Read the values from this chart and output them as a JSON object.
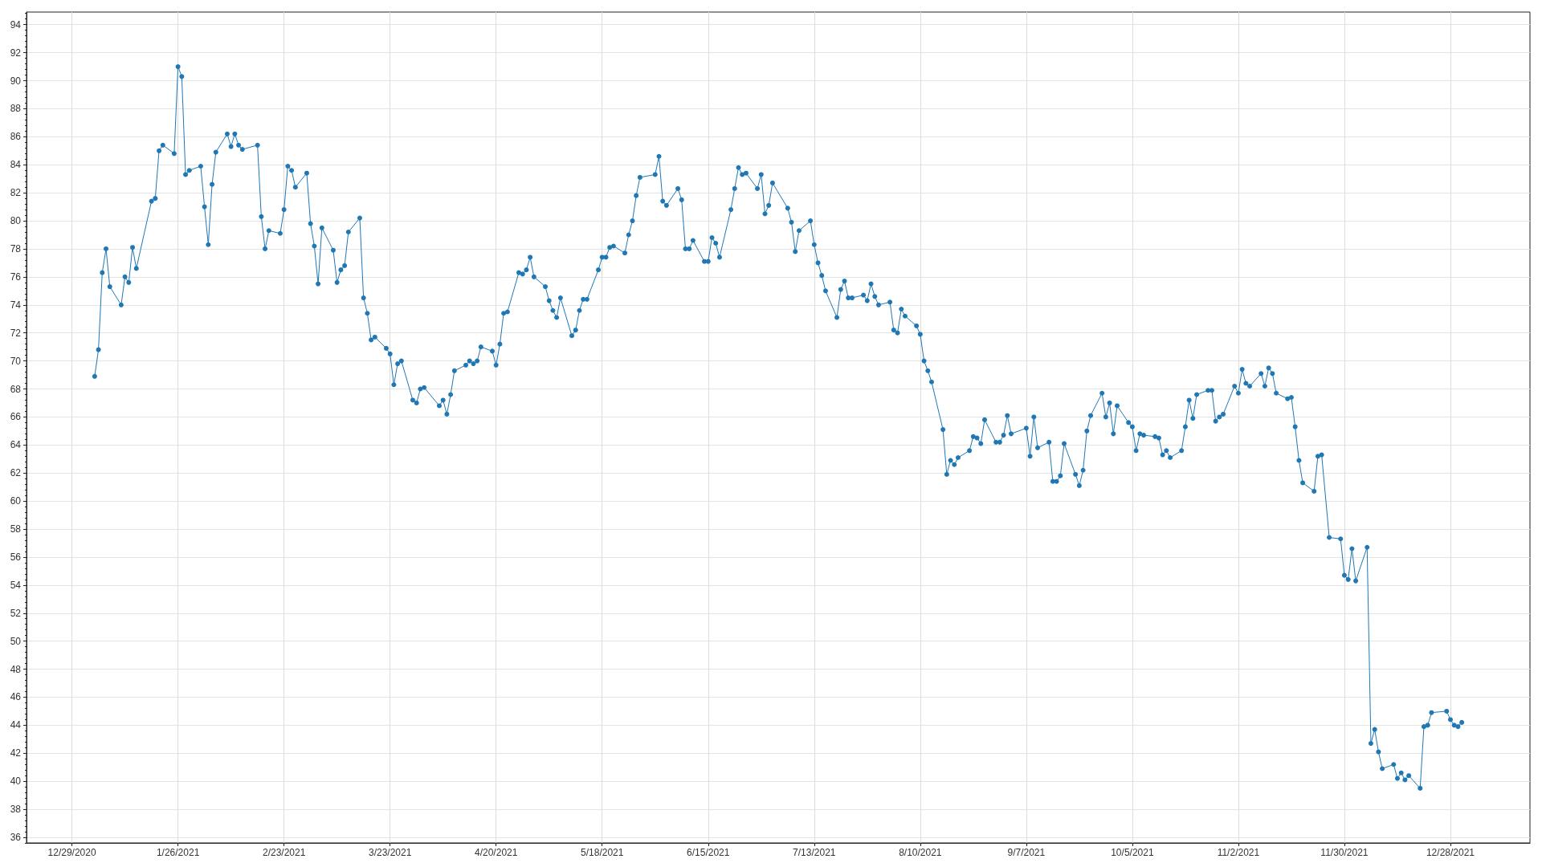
{
  "chart_data": {
    "type": "line",
    "color": "#1f77b4",
    "marker": "circle",
    "line_style": "solid",
    "grid": true,
    "xlim": [
      "2020-12-17",
      "2022-01-18"
    ],
    "xticks": [
      {
        "value": "2020-12-29",
        "label": "12/29/2020"
      },
      {
        "value": "2021-01-26",
        "label": "1/26/2021"
      },
      {
        "value": "2021-02-23",
        "label": "2/23/2021"
      },
      {
        "value": "2021-03-23",
        "label": "3/23/2021"
      },
      {
        "value": "2021-04-20",
        "label": "4/20/2021"
      },
      {
        "value": "2021-05-18",
        "label": "5/18/2021"
      },
      {
        "value": "2021-06-15",
        "label": "6/15/2021"
      },
      {
        "value": "2021-07-13",
        "label": "7/13/2021"
      },
      {
        "value": "2021-08-10",
        "label": "8/10/2021"
      },
      {
        "value": "2021-09-07",
        "label": "9/7/2021"
      },
      {
        "value": "2021-10-05",
        "label": "10/5/2021"
      },
      {
        "value": "2021-11-02",
        "label": "11/2/2021"
      },
      {
        "value": "2021-11-30",
        "label": "11/30/2021"
      },
      {
        "value": "2021-12-28",
        "label": "12/28/2021"
      }
    ],
    "ylim": [
      35.6,
      94.9
    ],
    "yticks": [
      {
        "value": 35.6,
        "label": null
      },
      36,
      {
        "value": 36.4,
        "label": null
      },
      {
        "value": 36.8,
        "label": null
      },
      {
        "value": 37.2,
        "label": null
      },
      {
        "value": 37.6,
        "label": null
      },
      38,
      {
        "value": 38.4,
        "label": null
      },
      {
        "value": 38.8,
        "label": null
      },
      {
        "value": 39.2,
        "label": null
      },
      {
        "value": 39.6,
        "label": null
      },
      40,
      {
        "value": 40.4,
        "label": null
      },
      {
        "value": 40.8,
        "label": null
      },
      {
        "value": 41.2,
        "label": null
      },
      {
        "value": 41.6,
        "label": null
      },
      42,
      {
        "value": 42.4,
        "label": null
      },
      {
        "value": 42.8,
        "label": null
      },
      {
        "value": 43.2,
        "label": null
      },
      {
        "value": 43.6,
        "label": null
      },
      44,
      {
        "value": 44.4,
        "label": null
      },
      {
        "value": 44.8,
        "label": null
      },
      {
        "value": 45.2,
        "label": null
      },
      {
        "value": 45.6,
        "label": null
      },
      46,
      {
        "value": 46.4,
        "label": null
      },
      {
        "value": 46.8,
        "label": null
      },
      {
        "value": 47.2,
        "label": null
      },
      {
        "value": 47.6,
        "label": null
      },
      48,
      {
        "value": 48.4,
        "label": null
      },
      {
        "value": 48.8,
        "label": null
      },
      {
        "value": 49.2,
        "label": null
      },
      {
        "value": 49.6,
        "label": null
      },
      50,
      {
        "value": 50.4,
        "label": null
      },
      {
        "value": 50.8,
        "label": null
      },
      {
        "value": 51.2,
        "label": null
      },
      {
        "value": 51.6,
        "label": null
      },
      52,
      {
        "value": 52.4,
        "label": null
      },
      {
        "value": 52.8,
        "label": null
      },
      {
        "value": 53.2,
        "label": null
      },
      {
        "value": 53.6,
        "label": null
      },
      54,
      {
        "value": 54.4,
        "label": null
      },
      {
        "value": 54.8,
        "label": null
      },
      {
        "value": 55.2,
        "label": null
      },
      {
        "value": 55.6,
        "label": null
      },
      56,
      {
        "value": 56.4,
        "label": null
      },
      {
        "value": 56.8,
        "label": null
      },
      {
        "value": 57.2,
        "label": null
      },
      {
        "value": 57.6,
        "label": null
      },
      58,
      {
        "value": 58.4,
        "label": null
      },
      {
        "value": 58.8,
        "label": null
      },
      {
        "value": 59.2,
        "label": null
      },
      {
        "value": 59.6,
        "label": null
      },
      60,
      {
        "value": 60.4,
        "label": null
      },
      {
        "value": 60.8,
        "label": null
      },
      {
        "value": 61.2,
        "label": null
      },
      {
        "value": 61.6,
        "label": null
      },
      62,
      {
        "value": 62.4,
        "label": null
      },
      {
        "value": 62.8,
        "label": null
      },
      {
        "value": 63.2,
        "label": null
      },
      {
        "value": 63.6,
        "label": null
      },
      64,
      {
        "value": 64.4,
        "label": null
      },
      {
        "value": 64.8,
        "label": null
      },
      {
        "value": 65.2,
        "label": null
      },
      {
        "value": 65.6,
        "label": null
      },
      66,
      {
        "value": 66.4,
        "label": null
      },
      {
        "value": 66.8,
        "label": null
      },
      {
        "value": 67.2,
        "label": null
      },
      {
        "value": 67.6,
        "label": null
      },
      68,
      {
        "value": 68.4,
        "label": null
      },
      {
        "value": 68.8,
        "label": null
      },
      {
        "value": 69.2,
        "label": null
      },
      {
        "value": 69.6,
        "label": null
      },
      70,
      {
        "value": 70.4,
        "label": null
      },
      {
        "value": 70.8,
        "label": null
      },
      {
        "value": 71.2,
        "label": null
      },
      {
        "value": 71.6,
        "label": null
      },
      72,
      {
        "value": 72.4,
        "label": null
      },
      {
        "value": 72.8,
        "label": null
      },
      {
        "value": 73.2,
        "label": null
      },
      {
        "value": 73.6,
        "label": null
      },
      74,
      {
        "value": 74.4,
        "label": null
      },
      {
        "value": 74.8,
        "label": null
      },
      {
        "value": 75.2,
        "label": null
      },
      {
        "value": 75.6,
        "label": null
      },
      76,
      {
        "value": 76.4,
        "label": null
      },
      {
        "value": 76.8,
        "label": null
      },
      {
        "value": 77.2,
        "label": null
      },
      {
        "value": 77.6,
        "label": null
      },
      78,
      {
        "value": 78.4,
        "label": null
      },
      {
        "value": 78.8,
        "label": null
      },
      {
        "value": 79.2,
        "label": null
      },
      {
        "value": 79.6,
        "label": null
      },
      80,
      {
        "value": 80.4,
        "label": null
      },
      {
        "value": 80.8,
        "label": null
      },
      {
        "value": 81.2,
        "label": null
      },
      {
        "value": 81.6,
        "label": null
      },
      82,
      {
        "value": 82.4,
        "label": null
      },
      {
        "value": 82.8,
        "label": null
      },
      {
        "value": 83.2,
        "label": null
      },
      {
        "value": 83.6,
        "label": null
      },
      84,
      {
        "value": 84.4,
        "label": null
      },
      {
        "value": 84.8,
        "label": null
      },
      {
        "value": 85.2,
        "label": null
      },
      {
        "value": 85.6,
        "label": null
      },
      86,
      {
        "value": 86.4,
        "label": null
      },
      {
        "value": 86.8,
        "label": null
      },
      {
        "value": 87.2,
        "label": null
      },
      {
        "value": 87.6,
        "label": null
      },
      88,
      {
        "value": 88.4,
        "label": null
      },
      {
        "value": 88.8,
        "label": null
      },
      {
        "value": 89.2,
        "label": null
      },
      {
        "value": 89.6,
        "label": null
      },
      90,
      {
        "value": 90.4,
        "label": null
      },
      {
        "value": 90.8,
        "label": null
      },
      {
        "value": 91.2,
        "label": null
      },
      {
        "value": 91.6,
        "label": null
      },
      92,
      {
        "value": 92.4,
        "label": null
      },
      {
        "value": 92.8,
        "label": null
      },
      {
        "value": 93.2,
        "label": null
      },
      {
        "value": 93.6,
        "label": null
      },
      94,
      {
        "value": 94.4,
        "label": null
      },
      {
        "value": 94.8,
        "label": null
      }
    ],
    "x": [
      "2021-01-04",
      "2021-01-05",
      "2021-01-06",
      "2021-01-07",
      "2021-01-08",
      "2021-01-11",
      "2021-01-12",
      "2021-01-13",
      "2021-01-14",
      "2021-01-15",
      "2021-01-19",
      "2021-01-20",
      "2021-01-21",
      "2021-01-22",
      "2021-01-25",
      "2021-01-26",
      "2021-01-27",
      "2021-01-28",
      "2021-01-29",
      "2021-02-01",
      "2021-02-02",
      "2021-02-03",
      "2021-02-04",
      "2021-02-05",
      "2021-02-08",
      "2021-02-09",
      "2021-02-10",
      "2021-02-11",
      "2021-02-12",
      "2021-02-16",
      "2021-02-17",
      "2021-02-18",
      "2021-02-19",
      "2021-02-22",
      "2021-02-23",
      "2021-02-24",
      "2021-02-25",
      "2021-02-26",
      "2021-03-01",
      "2021-03-02",
      "2021-03-03",
      "2021-03-04",
      "2021-03-05",
      "2021-03-08",
      "2021-03-09",
      "2021-03-10",
      "2021-03-11",
      "2021-03-12",
      "2021-03-15",
      "2021-03-16",
      "2021-03-17",
      "2021-03-18",
      "2021-03-19",
      "2021-03-22",
      "2021-03-23",
      "2021-03-24",
      "2021-03-25",
      "2021-03-26",
      "2021-03-29",
      "2021-03-30",
      "2021-03-31",
      "2021-04-01",
      "2021-04-05",
      "2021-04-06",
      "2021-04-07",
      "2021-04-08",
      "2021-04-09",
      "2021-04-12",
      "2021-04-13",
      "2021-04-14",
      "2021-04-15",
      "2021-04-16",
      "2021-04-19",
      "2021-04-20",
      "2021-04-21",
      "2021-04-22",
      "2021-04-23",
      "2021-04-26",
      "2021-04-27",
      "2021-04-28",
      "2021-04-29",
      "2021-04-30",
      "2021-05-03",
      "2021-05-04",
      "2021-05-05",
      "2021-05-06",
      "2021-05-07",
      "2021-05-10",
      "2021-05-11",
      "2021-05-12",
      "2021-05-13",
      "2021-05-14",
      "2021-05-17",
      "2021-05-18",
      "2021-05-19",
      "2021-05-20",
      "2021-05-21",
      "2021-05-24",
      "2021-05-25",
      "2021-05-26",
      "2021-05-27",
      "2021-05-28",
      "2021-06-01",
      "2021-06-02",
      "2021-06-03",
      "2021-06-04",
      "2021-06-07",
      "2021-06-08",
      "2021-06-09",
      "2021-06-10",
      "2021-06-11",
      "2021-06-14",
      "2021-06-15",
      "2021-06-16",
      "2021-06-17",
      "2021-06-18",
      "2021-06-21",
      "2021-06-22",
      "2021-06-23",
      "2021-06-24",
      "2021-06-25",
      "2021-06-28",
      "2021-06-29",
      "2021-06-30",
      "2021-07-01",
      "2021-07-02",
      "2021-07-06",
      "2021-07-07",
      "2021-07-08",
      "2021-07-09",
      "2021-07-12",
      "2021-07-13",
      "2021-07-14",
      "2021-07-15",
      "2021-07-16",
      "2021-07-19",
      "2021-07-20",
      "2021-07-21",
      "2021-07-22",
      "2021-07-23",
      "2021-07-26",
      "2021-07-27",
      "2021-07-28",
      "2021-07-29",
      "2021-07-30",
      "2021-08-02",
      "2021-08-03",
      "2021-08-04",
      "2021-08-05",
      "2021-08-06",
      "2021-08-09",
      "2021-08-10",
      "2021-08-11",
      "2021-08-12",
      "2021-08-13",
      "2021-08-16",
      "2021-08-17",
      "2021-08-18",
      "2021-08-19",
      "2021-08-20",
      "2021-08-23",
      "2021-08-24",
      "2021-08-25",
      "2021-08-26",
      "2021-08-27",
      "2021-08-30",
      "2021-08-31",
      "2021-09-01",
      "2021-09-02",
      "2021-09-03",
      "2021-09-07",
      "2021-09-08",
      "2021-09-09",
      "2021-09-10",
      "2021-09-13",
      "2021-09-14",
      "2021-09-15",
      "2021-09-16",
      "2021-09-17",
      "2021-09-20",
      "2021-09-21",
      "2021-09-22",
      "2021-09-23",
      "2021-09-24",
      "2021-09-27",
      "2021-09-28",
      "2021-09-29",
      "2021-09-30",
      "2021-10-01",
      "2021-10-04",
      "2021-10-05",
      "2021-10-06",
      "2021-10-07",
      "2021-10-08",
      "2021-10-11",
      "2021-10-12",
      "2021-10-13",
      "2021-10-14",
      "2021-10-15",
      "2021-10-18",
      "2021-10-19",
      "2021-10-20",
      "2021-10-21",
      "2021-10-22",
      "2021-10-25",
      "2021-10-26",
      "2021-10-27",
      "2021-10-28",
      "2021-10-29",
      "2021-11-01",
      "2021-11-02",
      "2021-11-03",
      "2021-11-04",
      "2021-11-05",
      "2021-11-08",
      "2021-11-09",
      "2021-11-10",
      "2021-11-11",
      "2021-11-12",
      "2021-11-15",
      "2021-11-16",
      "2021-11-17",
      "2021-11-18",
      "2021-11-19",
      "2021-11-22",
      "2021-11-23",
      "2021-11-24",
      "2021-11-26",
      "2021-11-29",
      "2021-11-30",
      "2021-12-01",
      "2021-12-02",
      "2021-12-03",
      "2021-12-06",
      "2021-12-07",
      "2021-12-08",
      "2021-12-09",
      "2021-12-10",
      "2021-12-13",
      "2021-12-14",
      "2021-12-15",
      "2021-12-16",
      "2021-12-17",
      "2021-12-20",
      "2021-12-21",
      "2021-12-22",
      "2021-12-23",
      "2021-12-27",
      "2021-12-28",
      "2021-12-29",
      "2021-12-30",
      "2021-12-31"
    ],
    "values": [
      68.9,
      70.8,
      76.3,
      78.0,
      75.3,
      74.0,
      76.0,
      75.6,
      78.1,
      76.6,
      81.4,
      81.6,
      85.0,
      85.4,
      84.8,
      91.0,
      90.3,
      83.3,
      83.6,
      83.9,
      81.0,
      78.3,
      82.6,
      84.9,
      86.2,
      85.3,
      86.2,
      85.4,
      85.1,
      85.4,
      80.3,
      78.0,
      79.3,
      79.1,
      80.8,
      83.9,
      83.6,
      82.4,
      83.4,
      79.8,
      78.2,
      75.5,
      79.5,
      77.9,
      75.6,
      76.5,
      76.8,
      79.2,
      80.2,
      74.5,
      73.4,
      71.5,
      71.7,
      70.9,
      70.5,
      68.3,
      69.8,
      70.0,
      67.2,
      67.0,
      68.0,
      68.1,
      66.8,
      67.2,
      66.2,
      67.6,
      69.3,
      69.7,
      70.0,
      69.8,
      70.0,
      71.0,
      70.7,
      69.7,
      71.2,
      73.4,
      73.5,
      76.3,
      76.2,
      76.5,
      77.4,
      76.0,
      75.3,
      74.3,
      73.6,
      73.1,
      74.5,
      71.8,
      72.2,
      73.6,
      74.4,
      74.4,
      76.5,
      77.4,
      77.4,
      78.1,
      78.2,
      77.7,
      79.0,
      80.0,
      81.8,
      83.1,
      83.3,
      84.6,
      81.4,
      81.1,
      82.3,
      81.5,
      78.0,
      78.0,
      78.6,
      77.1,
      77.1,
      78.8,
      78.4,
      77.4,
      80.8,
      82.3,
      83.8,
      83.3,
      83.4,
      82.3,
      83.3,
      80.5,
      81.1,
      82.7,
      80.9,
      79.9,
      77.8,
      79.3,
      80.0,
      78.3,
      77.0,
      76.1,
      75.0,
      73.1,
      75.1,
      75.7,
      74.5,
      74.5,
      74.7,
      74.3,
      75.5,
      74.6,
      74.0,
      74.2,
      72.2,
      72.0,
      73.7,
      73.2,
      72.5,
      71.9,
      70.0,
      69.3,
      68.5,
      65.1,
      61.9,
      62.9,
      62.6,
      63.1,
      63.6,
      64.6,
      64.5,
      64.1,
      65.8,
      64.2,
      64.2,
      64.7,
      66.1,
      64.8,
      65.2,
      63.2,
      66.0,
      63.8,
      64.2,
      61.4,
      61.4,
      61.8,
      64.1,
      61.9,
      61.1,
      62.2,
      65.0,
      66.1,
      67.7,
      66.0,
      67.0,
      64.8,
      66.8,
      65.6,
      65.3,
      63.6,
      64.8,
      64.7,
      64.6,
      64.5,
      63.3,
      63.6,
      63.1,
      63.6,
      65.3,
      67.2,
      65.9,
      67.6,
      67.9,
      67.9,
      65.7,
      66.0,
      66.2,
      68.2,
      67.7,
      69.4,
      68.4,
      68.2,
      69.1,
      68.2,
      69.5,
      69.1,
      67.7,
      67.3,
      67.4,
      65.3,
      62.9,
      61.3,
      60.7,
      63.2,
      63.3,
      57.4,
      57.3,
      54.7,
      54.4,
      56.6,
      54.3,
      56.7,
      42.7,
      43.7,
      42.1,
      40.9,
      41.2,
      40.2,
      40.6,
      40.1,
      40.4,
      39.5,
      43.9,
      44.0,
      44.9,
      45.0,
      44.4,
      44.0,
      43.9,
      44.2
    ]
  }
}
